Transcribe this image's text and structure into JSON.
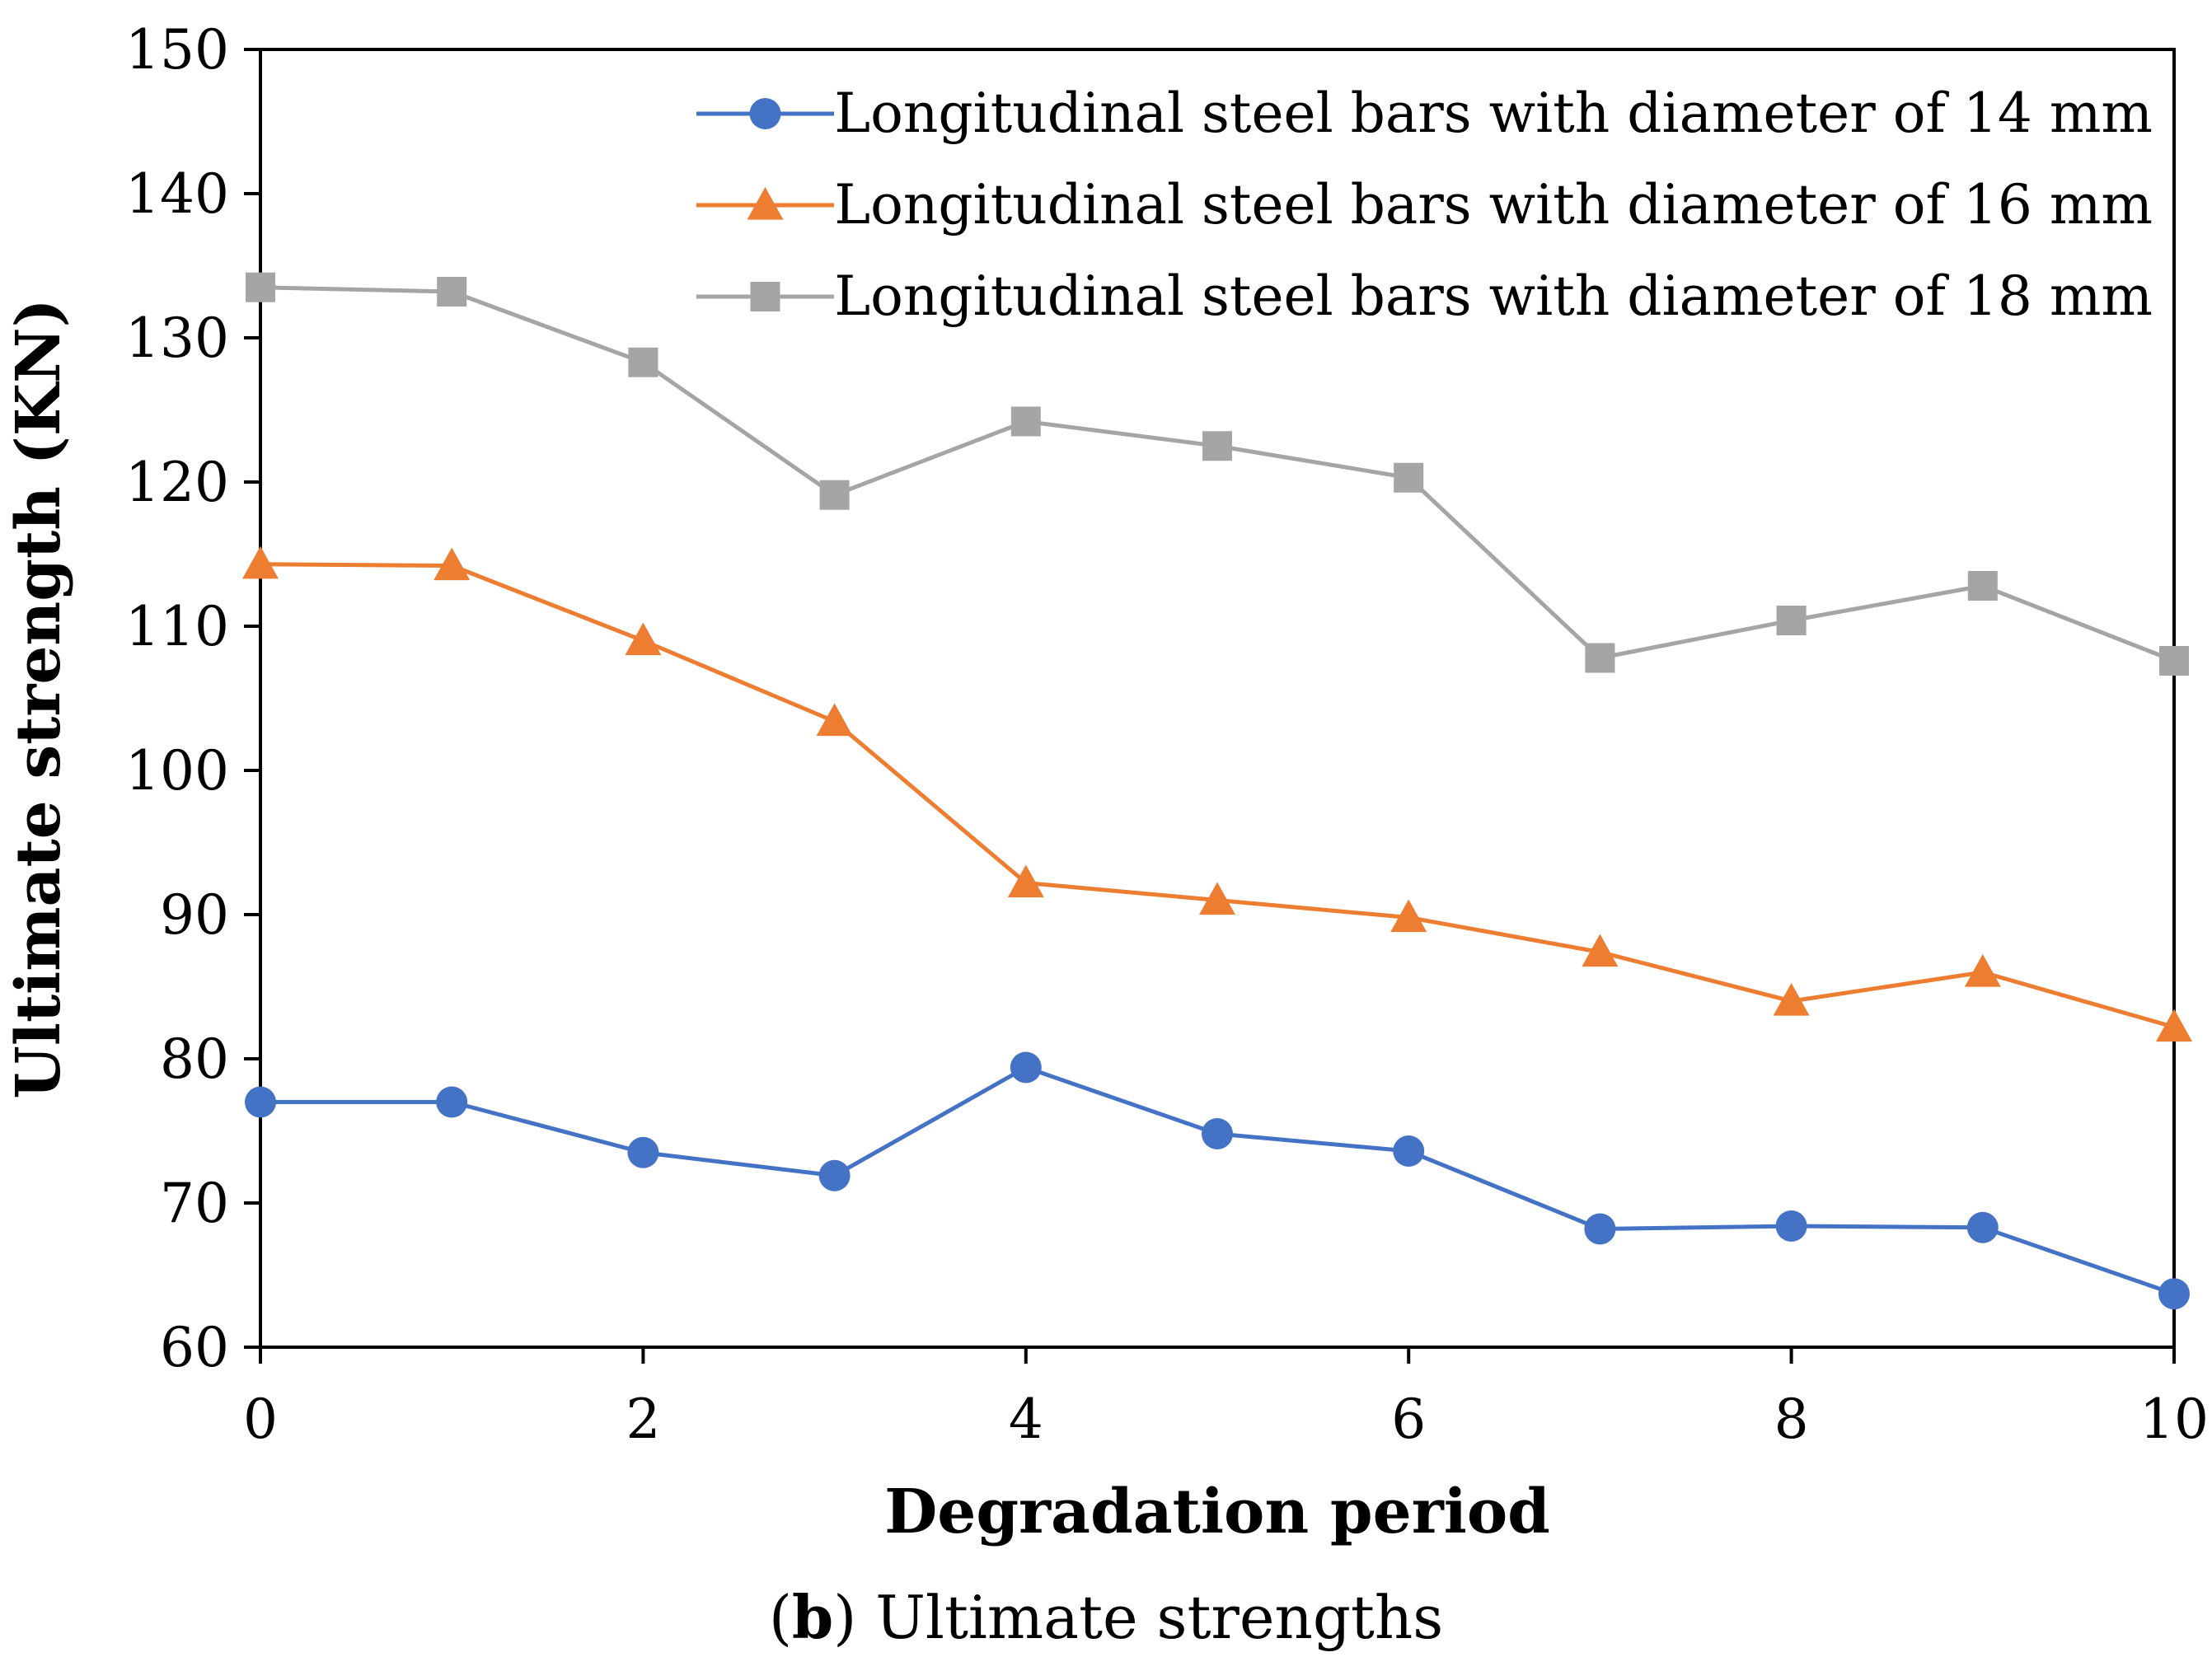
{
  "chart_data": {
    "type": "line",
    "title": "",
    "xlabel": "Degradation period",
    "ylabel": "Ultimate strength (KN)",
    "xlim": [
      0,
      10
    ],
    "ylim": [
      60,
      150
    ],
    "x_ticks": [
      "0",
      "2",
      "4",
      "6",
      "8",
      "10"
    ],
    "y_ticks": [
      "60",
      "70",
      "80",
      "90",
      "100",
      "110",
      "120",
      "130",
      "140",
      "150"
    ],
    "grid": false,
    "legend_position": "top-right",
    "x": [
      0,
      1,
      2,
      3,
      4,
      5,
      6,
      7,
      8,
      9,
      10
    ],
    "series": [
      {
        "name": "Longitudinal steel bars with diameter of 14 mm",
        "color": "#4472C4",
        "marker": "circle",
        "values": [
          77.0,
          77.0,
          73.5,
          71.9,
          79.4,
          74.8,
          73.6,
          68.2,
          68.4,
          68.3,
          63.7
        ]
      },
      {
        "name": "Longitudinal steel bars with diameter of 16 mm",
        "color": "#ED7D31",
        "marker": "triangle",
        "values": [
          114.3,
          114.2,
          109.0,
          103.4,
          92.2,
          91.0,
          89.8,
          87.4,
          84.0,
          86.0,
          82.2
        ]
      },
      {
        "name": "Longitudinal steel bars with diameter of 18 mm",
        "color": "#A5A5A5",
        "marker": "square",
        "values": [
          133.5,
          133.2,
          128.3,
          119.1,
          124.2,
          122.5,
          120.3,
          107.8,
          110.4,
          112.8,
          107.6
        ]
      }
    ]
  },
  "caption": {
    "open": "(",
    "bold": "b",
    "rest": ") Ultimate strengths"
  }
}
